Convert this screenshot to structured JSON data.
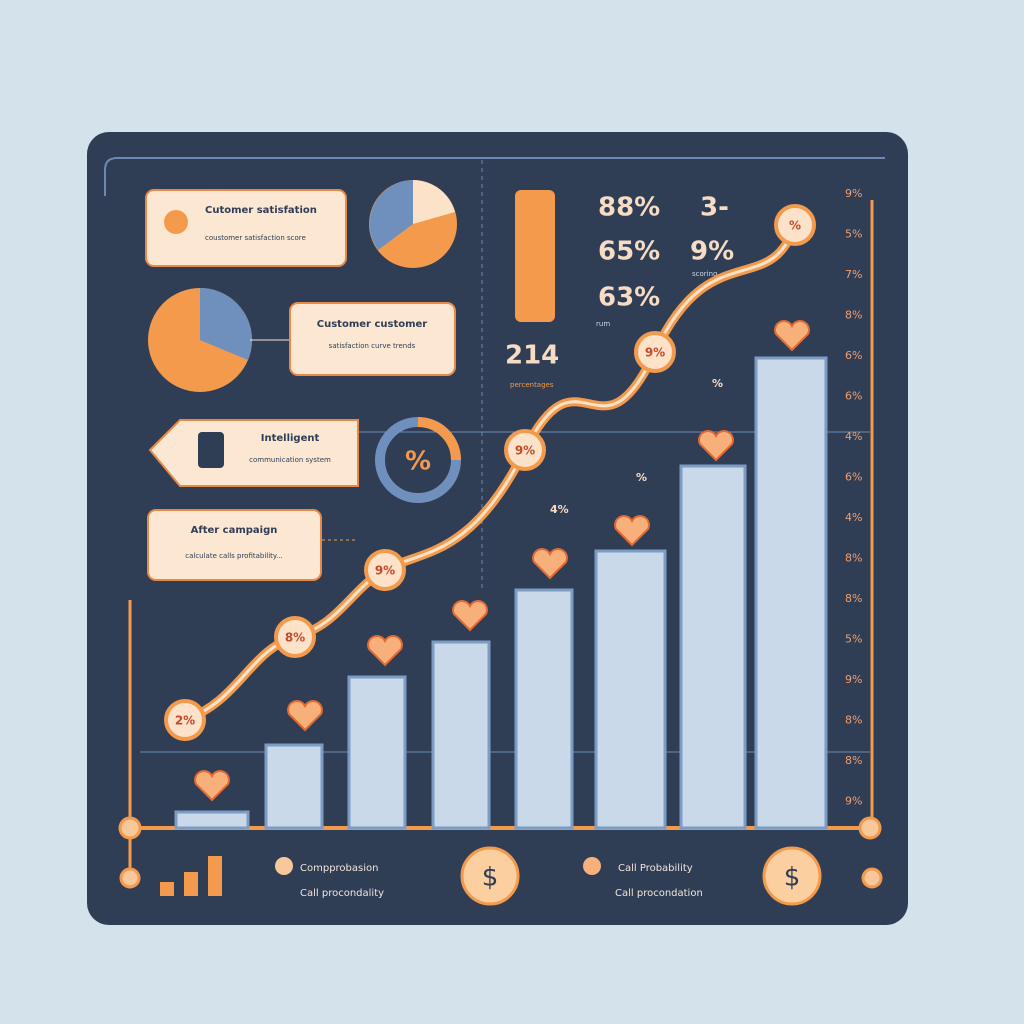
{
  "callouts": [
    {
      "title": "Cutomer satisfation",
      "text": "coustomer satisfaction score"
    },
    {
      "title": "Customer customer",
      "text": "satisfaction curve trends"
    },
    {
      "title": "Intelligent",
      "text": "communication system"
    },
    {
      "title": "After campaign",
      "text": "calculate calls profitability..."
    }
  ],
  "donut_label": "%",
  "stats": {
    "items": [
      "88%",
      "3-",
      "65%",
      "9%",
      "63%"
    ],
    "sublabels": [
      "scoring",
      "rum"
    ],
    "big": "214",
    "big_label": "percentages"
  },
  "line_nodes": [
    "2%",
    "8%",
    "9%",
    "9%",
    "9%",
    "%"
  ],
  "floating_labels": [
    "4%",
    "%",
    "%"
  ],
  "right_axis": [
    "9%",
    "5%",
    "7%",
    "8%",
    "6%",
    "6%",
    "4%",
    "6%",
    "4%",
    "8%",
    "8%",
    "5%",
    "9%",
    "8%",
    "8%",
    "9%"
  ],
  "footer": {
    "left_title": "Compprobasion",
    "left_text": "Call procondality",
    "right_title": "Call Probability",
    "right_text": "Call procondation",
    "currency": [
      "$",
      "$"
    ]
  }
}
